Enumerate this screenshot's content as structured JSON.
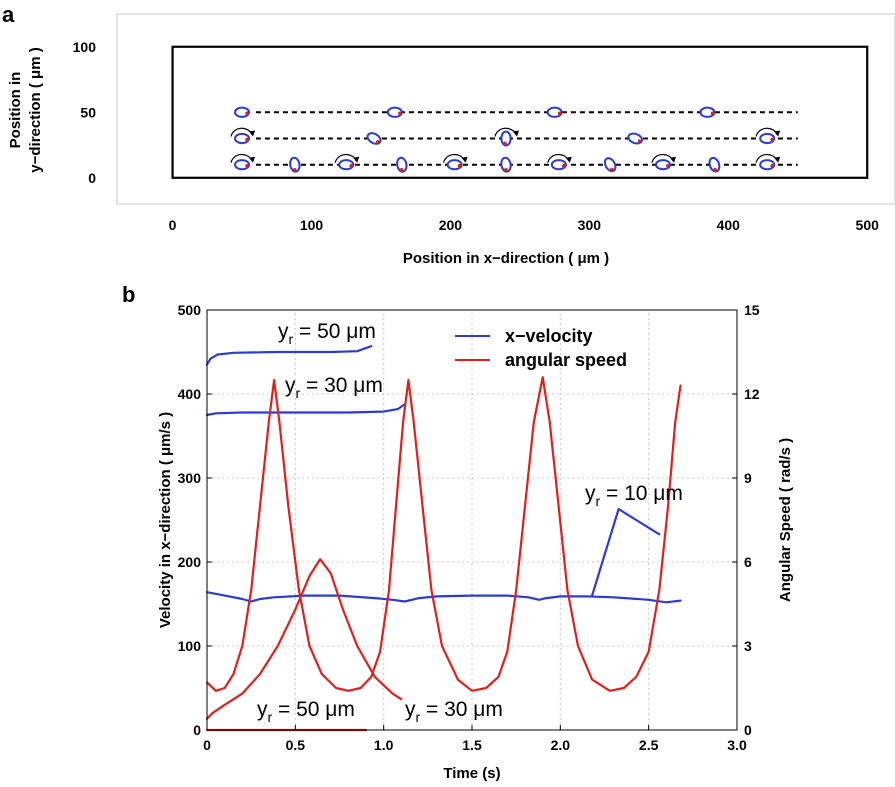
{
  "chart_data": [
    {
      "panel": "a",
      "type": "scatter",
      "xlabel": "Position in x−direction ( μm )",
      "ylabel_line1": "Position in",
      "ylabel_line2": "y−direction ( μm )",
      "xlim": [
        -40,
        520
      ],
      "ylim": [
        -20,
        125
      ],
      "xticks": [
        0,
        100,
        200,
        300,
        400,
        500
      ],
      "yticks": [
        0,
        50,
        100
      ],
      "channel": {
        "x0": 0,
        "x1": 500,
        "y0": 0,
        "y1": 100
      },
      "tracks": [
        {
          "y": 50,
          "x_start": 60,
          "x_end": 450,
          "particles": [
            {
              "x": 50,
              "a": 0
            },
            {
              "x": 160,
              "a": 0
            },
            {
              "x": 275,
              "a": 0
            },
            {
              "x": 385,
              "a": 0
            }
          ]
        },
        {
          "y": 30,
          "x_start": 60,
          "x_end": 450,
          "particles": [
            {
              "x": 50,
              "a": 0,
              "arrow": true
            },
            {
              "x": 145,
              "a": 30
            },
            {
              "x": 240,
              "a": 90,
              "arrow": true
            },
            {
              "x": 333,
              "a": 20
            },
            {
              "x": 428,
              "a": 0,
              "arrow": true
            }
          ]
        },
        {
          "y": 10,
          "x_start": 60,
          "x_end": 450,
          "particles": [
            {
              "x": 50,
              "a": 0,
              "arrow": true
            },
            {
              "x": 88,
              "a": 80
            },
            {
              "x": 125,
              "a": 0,
              "arrow": true
            },
            {
              "x": 165,
              "a": 80
            },
            {
              "x": 203,
              "a": 0,
              "arrow": true
            },
            {
              "x": 240,
              "a": 80
            },
            {
              "x": 278,
              "a": 0,
              "arrow": true
            },
            {
              "x": 315,
              "a": 60
            },
            {
              "x": 353,
              "a": 0,
              "arrow": true
            },
            {
              "x": 390,
              "a": 70
            },
            {
              "x": 428,
              "a": 0,
              "arrow": true
            }
          ]
        }
      ]
    },
    {
      "panel": "b",
      "type": "line",
      "xlabel": "Time (s)",
      "ylabel": "Velocity in x−direction ( μm/s )",
      "ylabel_right": "Angular Speed ( rad/s )",
      "xlim": [
        0,
        3
      ],
      "ylim": [
        0,
        500
      ],
      "ylim_right": [
        0,
        15
      ],
      "xticks": [
        "0",
        "0.5",
        "1.0",
        "1.5",
        "2.0",
        "2.5",
        "3.0"
      ],
      "yticks": [
        "0",
        "100",
        "200",
        "300",
        "400",
        "500"
      ],
      "yticks_right": [
        "0",
        "3",
        "6",
        "9",
        "12",
        "15"
      ],
      "grid": true,
      "legend": [
        {
          "label": "x−velocity",
          "color": "#2b3bd6"
        },
        {
          "label": "angular speed",
          "color": "#e0201c"
        }
      ],
      "annotations": {
        "top_50": {
          "label": "y",
          "sub": "r",
          "rest": " = 50 μm"
        },
        "top_30": {
          "label": "y",
          "sub": "r",
          "rest": " = 30 μm"
        },
        "mid_10": {
          "label": "y",
          "sub": "r",
          "rest": " = 10 μm"
        },
        "bot_50": {
          "label": "y",
          "sub": "r",
          "rest": " = 50 μm"
        },
        "bot_30": {
          "label": "y",
          "sub": "r",
          "rest": " = 30 μm"
        }
      },
      "series": [
        {
          "axis": "left",
          "color": "#2b3bd6",
          "points": [
            [
              0,
              435
            ],
            [
              0.02,
              442
            ],
            [
              0.06,
              447
            ],
            [
              0.15,
              449
            ],
            [
              0.4,
              450
            ],
            [
              0.7,
              450
            ],
            [
              0.85,
              451
            ],
            [
              0.93,
              457
            ]
          ]
        },
        {
          "axis": "left",
          "color": "#2b3bd6",
          "points": [
            [
              0,
              375
            ],
            [
              0.05,
              377
            ],
            [
              0.2,
              378
            ],
            [
              0.5,
              378
            ],
            [
              0.8,
              378
            ],
            [
              1.0,
              379
            ],
            [
              1.08,
              382
            ],
            [
              1.12,
              388
            ]
          ]
        },
        {
          "axis": "left",
          "color": "#2b3bd6",
          "points": [
            [
              0,
              164
            ],
            [
              0.1,
              160
            ],
            [
              0.2,
              156
            ],
            [
              0.25,
              153
            ],
            [
              0.3,
              156
            ],
            [
              0.38,
              158
            ],
            [
              0.55,
              160
            ],
            [
              0.75,
              160
            ],
            [
              0.95,
              157
            ],
            [
              1.05,
              155
            ],
            [
              1.12,
              153
            ],
            [
              1.2,
              157
            ],
            [
              1.3,
              159
            ],
            [
              1.5,
              160
            ],
            [
              1.7,
              160
            ],
            [
              1.82,
              158
            ],
            [
              1.88,
              155
            ],
            [
              1.92,
              157
            ],
            [
              2.0,
              159
            ],
            [
              2.15,
              159
            ],
            [
              2.3,
              158
            ],
            [
              2.5,
              155
            ],
            [
              2.6,
              152
            ],
            [
              2.68,
              154
            ]
          ]
        },
        {
          "axis": "left",
          "color": "#2b3bd6",
          "points": [
            [
              2.18,
              160
            ],
            [
              2.33,
              263
            ],
            [
              2.56,
              233
            ]
          ]
        },
        {
          "axis": "right",
          "color": "#e0201c",
          "points": [
            [
              0,
              1.7
            ],
            [
              0.05,
              1.4
            ],
            [
              0.1,
              1.5
            ],
            [
              0.15,
              2.0
            ],
            [
              0.2,
              3.0
            ],
            [
              0.25,
              5.0
            ],
            [
              0.3,
              8.0
            ],
            [
              0.35,
              11.0
            ],
            [
              0.38,
              12.5
            ],
            [
              0.41,
              11.0
            ],
            [
              0.46,
              8.0
            ],
            [
              0.52,
              5.0
            ],
            [
              0.58,
              3.0
            ],
            [
              0.65,
              2.0
            ],
            [
              0.73,
              1.5
            ],
            [
              0.8,
              1.4
            ],
            [
              0.87,
              1.5
            ],
            [
              0.93,
              1.9
            ],
            [
              0.98,
              2.8
            ],
            [
              1.03,
              5.0
            ],
            [
              1.07,
              8.0
            ],
            [
              1.11,
              11.0
            ],
            [
              1.14,
              12.5
            ],
            [
              1.17,
              11.0
            ],
            [
              1.22,
              8.0
            ],
            [
              1.27,
              5.0
            ],
            [
              1.33,
              3.0
            ],
            [
              1.42,
              1.8
            ],
            [
              1.5,
              1.4
            ],
            [
              1.58,
              1.5
            ],
            [
              1.65,
              1.9
            ],
            [
              1.7,
              2.8
            ],
            [
              1.75,
              5.0
            ],
            [
              1.8,
              8.0
            ],
            [
              1.85,
              11.0
            ],
            [
              1.9,
              12.6
            ],
            [
              1.94,
              11.0
            ],
            [
              1.99,
              8.0
            ],
            [
              2.04,
              5.0
            ],
            [
              2.1,
              3.0
            ],
            [
              2.18,
              1.8
            ],
            [
              2.28,
              1.4
            ],
            [
              2.36,
              1.5
            ],
            [
              2.43,
              1.9
            ],
            [
              2.5,
              2.8
            ],
            [
              2.56,
              5.0
            ],
            [
              2.61,
              8.0
            ],
            [
              2.65,
              11.0
            ],
            [
              2.68,
              12.3
            ]
          ]
        },
        {
          "axis": "right",
          "color": "#e0201c",
          "points": [
            [
              0,
              0.4
            ],
            [
              0.03,
              0.6
            ],
            [
              0.1,
              0.9
            ],
            [
              0.2,
              1.3
            ],
            [
              0.3,
              2.0
            ],
            [
              0.4,
              3.0
            ],
            [
              0.5,
              4.3
            ],
            [
              0.58,
              5.5
            ],
            [
              0.64,
              6.1
            ],
            [
              0.7,
              5.6
            ],
            [
              0.77,
              4.3
            ],
            [
              0.85,
              3.0
            ],
            [
              0.95,
              1.9
            ],
            [
              1.05,
              1.3
            ],
            [
              1.1,
              1.1
            ]
          ]
        },
        {
          "axis": "right",
          "color": "#e0201c",
          "points": [
            [
              0,
              0
            ],
            [
              0.9,
              0
            ]
          ]
        }
      ]
    }
  ]
}
